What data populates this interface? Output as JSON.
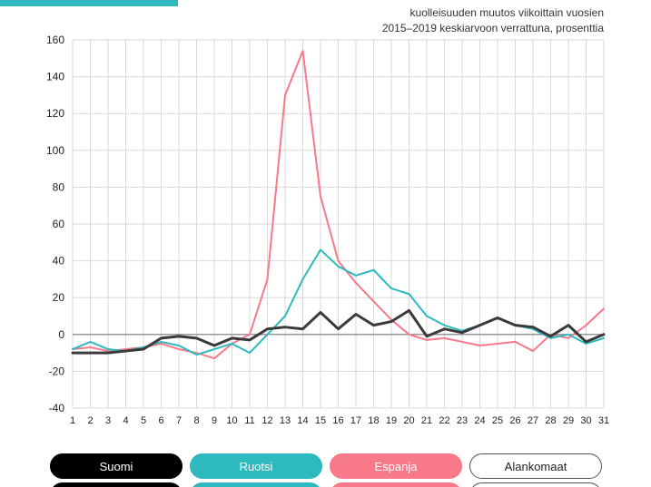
{
  "header": {
    "accent_color": "#2eb9bf"
  },
  "chart_data": {
    "type": "line",
    "title_lines": [
      "kuolleisuuden muutos viikoittain vuosien",
      "2015–2019 keskiarvoon verrattuna, prosenttia"
    ],
    "x": [
      1,
      2,
      3,
      4,
      5,
      6,
      7,
      8,
      9,
      10,
      11,
      12,
      13,
      14,
      15,
      16,
      17,
      18,
      19,
      20,
      21,
      22,
      23,
      24,
      25,
      26,
      27,
      28,
      29,
      30,
      31
    ],
    "xlabel": "",
    "ylabel": "",
    "ylim": [
      -40,
      160
    ],
    "y_ticks": [
      -40,
      -20,
      0,
      20,
      40,
      60,
      80,
      100,
      120,
      140,
      160
    ],
    "grid": true,
    "legend_position": "bottom",
    "series": [
      {
        "name": "Suomi",
        "color": "#3a3a3a",
        "width": 3,
        "values": [
          -10,
          -10,
          -10,
          -9,
          -8,
          -2,
          -1,
          -2,
          -6,
          -2,
          -3,
          3,
          4,
          3,
          12,
          3,
          11,
          5,
          7,
          13,
          -1,
          3,
          1,
          5,
          9,
          5,
          4,
          -1,
          5,
          -4,
          0
        ]
      },
      {
        "name": "Ruotsi",
        "color": "#2eb9bf",
        "width": 2,
        "values": [
          -8,
          -4,
          -8,
          -9,
          -7,
          -4,
          -6,
          -11,
          -8,
          -5,
          -10,
          0,
          10,
          30,
          46,
          37,
          32,
          35,
          25,
          22,
          10,
          5,
          2,
          5,
          9,
          5,
          3,
          -2,
          0,
          -5,
          -2
        ]
      },
      {
        "name": "Espanja",
        "color": "#f8798a",
        "width": 2,
        "values": [
          -8,
          -7,
          -9,
          -8,
          -7,
          -5,
          -8,
          -10,
          -13,
          -5,
          0,
          30,
          130,
          154,
          75,
          40,
          28,
          18,
          8,
          0,
          -3,
          -2,
          -4,
          -6,
          -5,
          -4,
          -9,
          0,
          -2,
          5,
          14
        ]
      }
    ]
  },
  "legend_buttons": [
    {
      "label": "Suomi",
      "bg": "#000000",
      "fg": "#ffffff",
      "border": "#000000"
    },
    {
      "label": "Ruotsi",
      "bg": "#2eb9bf",
      "fg": "#ffffff",
      "border": "#2eb9bf"
    },
    {
      "label": "Espanja",
      "bg": "#f8798a",
      "fg": "#ffffff",
      "border": "#f8798a"
    },
    {
      "label": "Alankomaat",
      "bg": "#ffffff",
      "fg": "#222222",
      "border": "#555555"
    }
  ],
  "legend_row2_colors": [
    "#000000",
    "#2eb9bf",
    "#f8798a",
    "#ffffff"
  ]
}
